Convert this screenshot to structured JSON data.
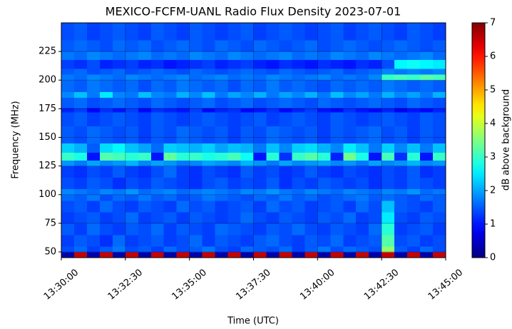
{
  "chart_data": {
    "type": "heatmap",
    "title": "MEXICO-FCFM-UANL Radio Flux Density 2023-07-01",
    "x_label": "Time (UTC)",
    "y_label": "Frequency (MHz)",
    "xlim": [
      "13:30:00",
      "13:45:00"
    ],
    "xticks": [
      "13:30:00",
      "13:32:30",
      "13:35:00",
      "13:37:30",
      "13:40:00",
      "13:42:30",
      "13:45:00"
    ],
    "ylim": [
      45,
      250
    ],
    "yticks": [
      50,
      75,
      100,
      125,
      150,
      175,
      200,
      225
    ],
    "grid": true,
    "colormap": "jet",
    "zlim": [
      0,
      7
    ],
    "zticks": [
      0,
      1,
      2,
      3,
      4,
      5,
      6,
      7
    ],
    "colorbar_label": "dB above background",
    "y_edges": [
      45,
      50,
      55,
      65,
      75,
      85,
      95,
      100,
      105,
      115,
      125,
      130,
      137,
      145,
      160,
      172,
      176,
      185,
      190,
      200,
      205,
      210,
      218,
      225,
      235,
      250
    ],
    "z": [
      [
        0.3,
        6.5,
        0.3,
        6.5,
        0.3,
        6.5,
        0.3,
        6.5,
        0.3,
        6.5,
        0.3,
        6.5,
        0.3,
        6.5,
        0.3,
        6.5,
        0.3,
        6.5,
        0.3,
        6.5,
        0.3,
        6.5,
        0.3,
        6.5,
        0.3,
        6.5,
        0.3,
        6.5,
        0.3,
        6.5
      ],
      [
        1.4,
        1.6,
        1.3,
        1.5,
        1.7,
        1.4,
        1.5,
        1.3,
        1.6,
        1.4,
        1.5,
        1.7,
        1.4,
        1.3,
        1.6,
        1.5,
        1.4,
        1.6,
        1.3,
        1.5,
        1.7,
        1.4,
        1.6,
        1.5,
        1.4,
        3.6,
        1.5,
        1.3,
        1.6,
        1.4
      ],
      [
        1.3,
        1.5,
        1.4,
        1.2,
        1.6,
        1.3,
        1.4,
        1.5,
        1.3,
        1.4,
        1.6,
        1.3,
        1.5,
        1.4,
        1.3,
        1.5,
        1.6,
        1.4,
        1.3,
        1.5,
        1.4,
        1.6,
        1.3,
        1.4,
        1.5,
        3.2,
        1.4,
        1.5,
        1.3,
        1.4
      ],
      [
        1.5,
        1.3,
        1.6,
        1.4,
        1.3,
        1.5,
        1.4,
        1.6,
        1.3,
        1.5,
        1.4,
        1.3,
        1.6,
        1.5,
        1.4,
        1.3,
        1.5,
        1.4,
        1.6,
        1.4,
        1.3,
        1.5,
        1.4,
        1.3,
        1.6,
        2.9,
        1.3,
        1.4,
        1.5,
        1.3
      ],
      [
        1.3,
        1.4,
        1.5,
        1.3,
        1.4,
        1.6,
        1.3,
        1.4,
        1.5,
        1.3,
        1.5,
        1.4,
        1.3,
        1.4,
        1.6,
        1.4,
        1.3,
        1.5,
        1.4,
        1.3,
        1.5,
        1.4,
        1.6,
        1.3,
        1.4,
        2.5,
        1.4,
        1.3,
        1.5,
        1.4
      ],
      [
        1.4,
        1.5,
        1.3,
        1.6,
        1.4,
        1.3,
        1.5,
        1.4,
        1.3,
        1.6,
        1.4,
        1.5,
        1.3,
        1.4,
        1.5,
        1.3,
        1.6,
        1.4,
        1.5,
        1.3,
        1.4,
        1.5,
        1.3,
        1.6,
        1.4,
        2.2,
        1.5,
        1.4,
        1.3,
        1.5
      ],
      [
        1.6,
        1.5,
        1.7,
        1.4,
        1.6,
        1.5,
        1.7,
        1.5,
        1.6,
        1.4,
        1.5,
        1.7,
        1.6,
        1.5,
        1.4,
        1.6,
        1.5,
        1.7,
        1.5,
        1.6,
        1.4,
        1.5,
        1.6,
        1.7,
        1.5,
        1.6,
        1.5,
        1.4,
        1.6,
        1.5
      ],
      [
        1.8,
        1.7,
        1.6,
        1.8,
        1.7,
        1.9,
        1.6,
        1.7,
        1.8,
        1.6,
        1.7,
        1.8,
        1.7,
        1.6,
        1.8,
        1.7,
        1.9,
        1.7,
        1.6,
        1.8,
        1.7,
        1.6,
        1.8,
        1.7,
        1.6,
        1.8,
        1.7,
        1.9,
        1.6,
        1.7
      ],
      [
        1.4,
        1.3,
        1.5,
        1.4,
        1.2,
        1.4,
        1.3,
        1.5,
        1.4,
        1.3,
        1.2,
        1.4,
        1.5,
        1.3,
        1.4,
        1.3,
        1.5,
        1.2,
        1.4,
        1.3,
        1.5,
        1.4,
        1.3,
        1.4,
        1.2,
        1.4,
        1.3,
        1.5,
        1.4,
        1.3
      ],
      [
        1.3,
        1.2,
        1.4,
        1.3,
        1.5,
        1.3,
        1.2,
        1.4,
        1.6,
        1.3,
        1.2,
        1.4,
        1.3,
        1.2,
        1.5,
        1.3,
        1.4,
        1.2,
        1.3,
        1.5,
        1.3,
        1.2,
        1.4,
        1.3,
        1.2,
        1.4,
        1.3,
        1.5,
        1.2,
        1.3
      ],
      [
        1.9,
        1.7,
        2.0,
        1.8,
        1.9,
        2.1,
        1.8,
        2.0,
        1.9,
        1.7,
        1.8,
        2.0,
        1.9,
        1.8,
        2.1,
        1.9,
        1.7,
        2.0,
        1.8,
        1.9,
        2.0,
        1.8,
        1.9,
        1.7,
        2.0,
        1.8,
        1.9,
        2.1,
        1.8,
        1.9
      ],
      [
        3.0,
        2.8,
        1.0,
        3.2,
        3.1,
        2.9,
        3.0,
        1.0,
        3.3,
        2.9,
        3.0,
        2.8,
        2.9,
        3.1,
        2.7,
        1.0,
        2.9,
        1.2,
        3.0,
        3.2,
        2.9,
        1.1,
        3.4,
        2.8,
        1.0,
        3.1,
        1.2,
        2.9,
        1.0,
        3.0
      ],
      [
        2.3,
        2.1,
        1.5,
        2.4,
        2.6,
        2.2,
        2.0,
        1.6,
        2.3,
        2.2,
        2.1,
        2.3,
        2.0,
        2.2,
        2.1,
        1.7,
        2.2,
        1.8,
        2.3,
        2.4,
        2.1,
        1.8,
        2.5,
        2.2,
        1.7,
        2.3,
        1.8,
        2.2,
        1.7,
        2.2
      ],
      [
        1.5,
        1.4,
        1.6,
        1.5,
        1.4,
        1.5,
        1.3,
        1.5,
        1.4,
        1.6,
        1.5,
        1.4,
        1.5,
        1.3,
        1.5,
        1.4,
        1.6,
        1.5,
        1.4,
        1.5,
        1.3,
        1.5,
        1.4,
        1.5,
        1.6,
        1.4,
        1.5,
        1.3,
        1.5,
        1.4
      ],
      [
        1.4,
        1.5,
        1.3,
        1.4,
        1.5,
        1.4,
        1.3,
        1.5,
        1.4,
        1.3,
        1.4,
        1.5,
        1.4,
        1.3,
        1.4,
        1.5,
        1.3,
        1.4,
        1.5,
        1.4,
        1.3,
        1.5,
        1.4,
        1.3,
        1.4,
        1.5,
        1.4,
        1.3,
        1.5,
        1.4
      ],
      [
        1.1,
        1.3,
        0.9,
        1.2,
        1.0,
        1.3,
        0.9,
        1.2,
        1.1,
        1.0,
        1.3,
        0.9,
        1.1,
        1.2,
        0.9,
        1.0,
        1.2,
        0.9,
        1.1,
        1.3,
        1.0,
        0.9,
        1.2,
        1.0,
        0.9,
        1.1,
        0.8,
        1.0,
        0.9,
        1.1
      ],
      [
        1.5,
        1.6,
        1.4,
        1.5,
        1.6,
        1.5,
        1.4,
        1.6,
        1.5,
        1.4,
        1.5,
        1.6,
        1.4,
        1.5,
        1.6,
        1.4,
        1.5,
        1.6,
        1.5,
        1.4,
        1.6,
        1.5,
        1.4,
        1.5,
        1.6,
        1.5,
        1.4,
        1.6,
        1.5,
        1.4
      ],
      [
        1.8,
        2.2,
        1.7,
        2.5,
        1.8,
        1.7,
        2.2,
        1.8,
        1.7,
        2.1,
        1.8,
        2.2,
        1.7,
        2.0,
        1.8,
        2.1,
        1.7,
        2.0,
        1.8,
        2.1,
        1.7,
        2.2,
        1.8,
        2.0,
        1.7,
        2.1,
        1.8,
        2.0,
        1.7,
        2.1
      ],
      [
        1.6,
        1.5,
        1.7,
        1.6,
        1.5,
        1.6,
        1.4,
        1.6,
        1.5,
        1.7,
        1.6,
        1.5,
        1.6,
        1.4,
        1.6,
        1.5,
        1.7,
        1.5,
        1.6,
        1.5,
        1.4,
        1.6,
        1.5,
        1.6,
        1.5,
        1.7,
        1.6,
        1.5,
        1.6,
        1.5
      ],
      [
        1.7,
        1.6,
        1.8,
        1.7,
        1.6,
        1.8,
        1.7,
        1.6,
        1.7,
        1.8,
        1.6,
        1.7,
        1.8,
        1.6,
        1.7,
        1.6,
        1.8,
        1.7,
        1.6,
        1.7,
        1.8,
        1.6,
        1.7,
        1.6,
        1.8,
        3.0,
        3.1,
        3.0,
        3.2,
        3.1
      ],
      [
        1.5,
        1.6,
        1.4,
        1.5,
        1.6,
        1.4,
        1.5,
        1.6,
        1.5,
        1.4,
        1.6,
        1.5,
        1.4,
        1.5,
        1.6,
        1.5,
        1.4,
        1.6,
        1.5,
        1.4,
        1.5,
        1.6,
        1.4,
        1.5,
        1.6,
        1.8,
        1.7,
        1.8,
        1.7,
        1.8
      ],
      [
        1.3,
        1.2,
        1.4,
        1.1,
        1.2,
        1.3,
        1.1,
        1.2,
        1.0,
        1.1,
        1.2,
        1.3,
        1.1,
        1.2,
        1.3,
        1.1,
        1.0,
        1.2,
        1.1,
        1.0,
        1.2,
        1.1,
        1.0,
        1.2,
        1.1,
        1.4,
        2.6,
        2.7,
        2.6,
        2.5
      ],
      [
        1.7,
        1.6,
        1.8,
        1.7,
        1.6,
        1.7,
        1.8,
        1.6,
        1.7,
        1.6,
        1.8,
        1.7,
        1.6,
        1.8,
        1.7,
        1.6,
        1.7,
        1.8,
        1.6,
        1.7,
        1.6,
        1.8,
        1.7,
        1.6,
        1.8,
        1.7,
        1.6,
        1.7,
        1.8,
        1.6
      ],
      [
        1.5,
        1.6,
        1.5,
        1.4,
        1.6,
        1.5,
        1.6,
        1.4,
        1.5,
        1.6,
        1.5,
        1.4,
        1.6,
        1.5,
        1.4,
        1.6,
        1.5,
        1.4,
        1.5,
        1.6,
        1.4,
        1.5,
        1.6,
        1.5,
        1.4,
        1.5,
        1.6,
        1.5,
        1.4,
        1.5
      ],
      [
        1.4,
        1.5,
        1.3,
        1.4,
        1.5,
        1.4,
        1.3,
        1.5,
        1.4,
        1.3,
        1.5,
        1.4,
        1.3,
        1.4,
        1.5,
        1.3,
        1.4,
        1.5,
        1.4,
        1.3,
        1.4,
        1.5,
        1.3,
        1.4,
        1.5,
        1.4,
        1.3,
        1.5,
        1.4,
        1.3
      ]
    ]
  }
}
